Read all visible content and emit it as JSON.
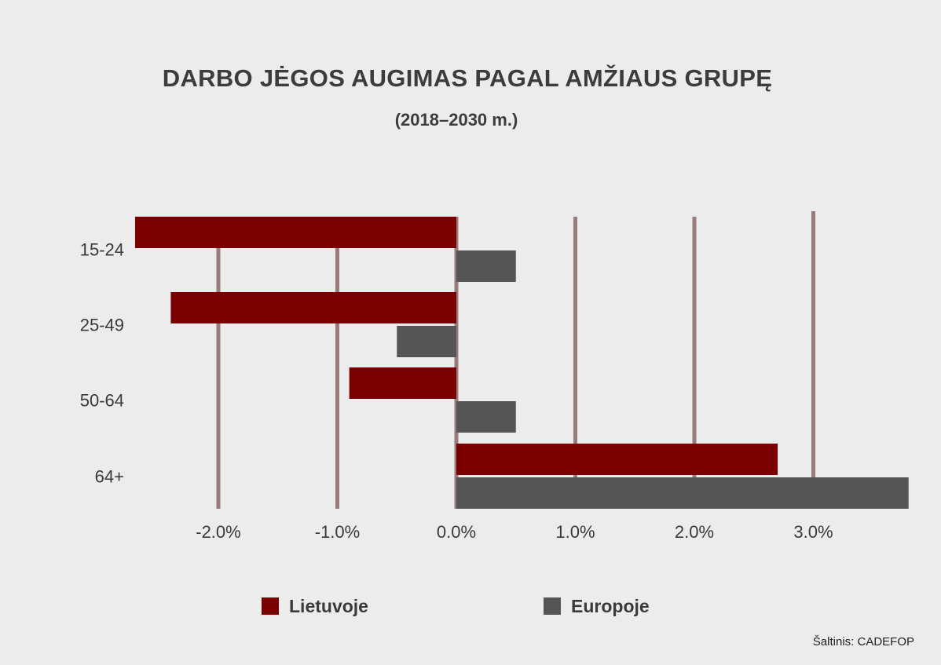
{
  "chart_data": {
    "type": "bar",
    "orientation": "horizontal",
    "title": "DARBO JĖGOS AUGIMAS PAGAL AMŽIAUS GRUPĘ",
    "subtitle": "(2018–2030 m.)",
    "categories": [
      "15-24",
      "25-49",
      "50-64",
      "64+"
    ],
    "series": [
      {
        "name": "Lietuvoje",
        "color": "#7a0000",
        "values": [
          -2.7,
          -2.4,
          -0.9,
          2.7
        ]
      },
      {
        "name": "Europoje",
        "color": "#555555",
        "values": [
          0.5,
          -0.5,
          0.5,
          3.8
        ]
      }
    ],
    "x_ticks": [
      {
        "value": -2,
        "label": "-2.0%"
      },
      {
        "value": -1,
        "label": "-1.0%"
      },
      {
        "value": 0,
        "label": "0.0%"
      },
      {
        "value": 1,
        "label": "1.0%"
      },
      {
        "value": 2,
        "label": "2.0%"
      },
      {
        "value": 3,
        "label": "3.0%"
      }
    ],
    "xlim": [
      -2.7,
      3.8
    ],
    "grid": true,
    "grid_color": "#9a7b7b",
    "legend_position": "bottom",
    "source": "Šaltinis: CADEFOP"
  }
}
